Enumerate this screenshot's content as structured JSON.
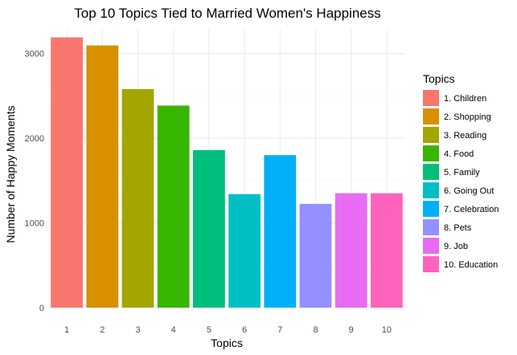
{
  "chart_data": {
    "type": "bar",
    "title": "Top 10 Topics Tied to Married Women's Happiness",
    "xlabel": "Topics",
    "ylabel": "Number of Happy Moments",
    "categories": [
      "1",
      "2",
      "3",
      "4",
      "5",
      "6",
      "7",
      "8",
      "9",
      "10"
    ],
    "values": [
      3190,
      3095,
      2580,
      2385,
      1860,
      1340,
      1800,
      1225,
      1350,
      1350
    ],
    "ylim": [
      0,
      3290
    ],
    "yticks": [
      0,
      1000,
      2000,
      3000
    ],
    "grid": true,
    "legend": {
      "title": "Topics",
      "position": "right",
      "entries": [
        "1. Children",
        "2. Shopping",
        "3. Reading",
        "4. Food",
        "5. Family",
        "6. Going Out",
        "7. Celebration",
        "8. Pets",
        "9. Job",
        "10. Education"
      ]
    },
    "colors": [
      "#F8766D",
      "#D89000",
      "#A3A500",
      "#39B600",
      "#00BF7D",
      "#00BFC4",
      "#00B0F6",
      "#9590FF",
      "#E76BF3",
      "#FF62BC"
    ]
  }
}
